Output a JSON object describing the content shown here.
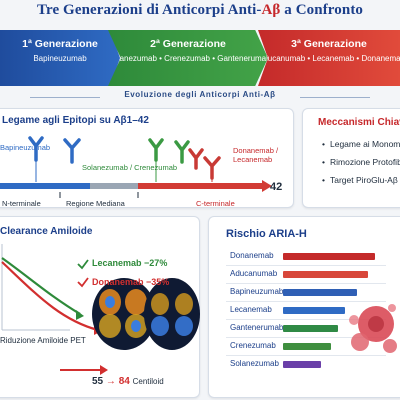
{
  "title": {
    "prefix": "Tre Generazioni di Anticorpi Anti-",
    "ab": "Aβ",
    "suffix": " a Confronto"
  },
  "generations": [
    {
      "title": "1ª Generazione",
      "drugs": "Bapineuzumab"
    },
    {
      "title": "2ª Generazione",
      "drugs": "Solanezumab • Crenezumab • Gantenerumab"
    },
    {
      "title": "3ª Generazione",
      "drugs": "Aducanumab • Lecanemab • Donanemab"
    }
  ],
  "evolution_label": "Evoluzione degli Anticorpi Anti-Aβ",
  "epitopes": {
    "title": "Legame agli Epitopi su Aβ1–42",
    "labels": {
      "gen1": "Bapineuzumab",
      "gen2": "Solanezumab / Crenezumab",
      "gen3": "Donanemab / Lecanemab"
    },
    "end_number": "42",
    "regions": [
      "N-terminale",
      "Regione Mediana",
      "C-terminale"
    ]
  },
  "mechanisms": {
    "title": "Meccanismi Chiave",
    "items": [
      "Legame ai Monomeri",
      "Rimozione Protofibrille",
      "Target PiroGlu-Aβ"
    ]
  },
  "clearance": {
    "title": "Clearance Amiloide",
    "series": [
      {
        "name": "Lecanemab",
        "value": "−27%",
        "color": "#2e8a3a"
      },
      {
        "name": "Donanemab",
        "value": "−35%",
        "color": "#d22f2f"
      }
    ],
    "xlabel": "Riduzione Amiloide PET",
    "centiloid_from": "55",
    "centiloid_to": "84",
    "centiloid_unit": "Centiloid"
  },
  "aria": {
    "title": "Rischio ARIA-H",
    "items": [
      {
        "name": "Donanemab",
        "value": 0.92,
        "color": "#c42a2a"
      },
      {
        "name": "Aducanumab",
        "value": 0.85,
        "color": "#d8473a"
      },
      {
        "name": "Bapineuzumab",
        "value": 0.74,
        "color": "#2f5fb5"
      },
      {
        "name": "Lecanemab",
        "value": 0.62,
        "color": "#2f6bc4"
      },
      {
        "name": "Gantenerumab",
        "value": 0.55,
        "color": "#2f8a45"
      },
      {
        "name": "Crenezumab",
        "value": 0.48,
        "color": "#3f8f3f"
      },
      {
        "name": "Solanezumab",
        "value": 0.38,
        "color": "#6a3fa8"
      }
    ]
  }
}
